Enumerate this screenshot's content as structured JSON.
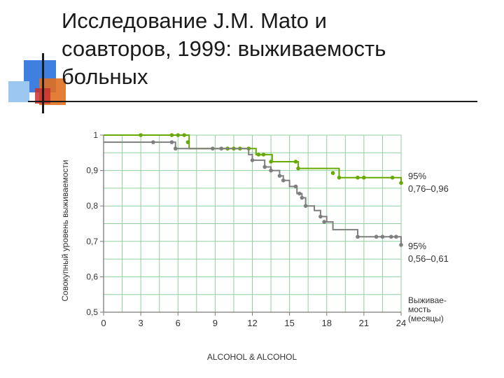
{
  "slide": {
    "title_lines": [
      "Исследование J.M. Mato и",
      "соавторов, 1999: выживаемость",
      "больных"
    ],
    "footer": "ALCOHOL & ALCOHOL"
  },
  "colors": {
    "deco_blue": "#3f7fe0",
    "deco_orange": "#e07020",
    "deco_red": "#c83030",
    "deco_light": "#9cc8f0",
    "grid": "#8fcf9f",
    "axis": "#7a7a7a",
    "series_green": "#66aa00",
    "series_gray": "#7f7f7f",
    "text": "#333333"
  },
  "chart_data": {
    "type": "line",
    "step": true,
    "ylabel": "Совокупный уровень выживаемости",
    "xlabel_lines": [
      "Выживае-",
      "мость",
      "(месяцы)"
    ],
    "xlim": [
      0,
      24
    ],
    "ylim": [
      0.5,
      1.0
    ],
    "xticks": [
      0,
      3,
      6,
      9,
      12,
      15,
      18,
      21,
      24
    ],
    "yticks": [
      0.5,
      0.6,
      0.7,
      0.8,
      0.9,
      1
    ],
    "ytick_labels": [
      "0,5",
      "0,6",
      "0,7",
      "0,8",
      "0,9",
      "1"
    ],
    "grid": true,
    "series": [
      {
        "color": "#66aa00",
        "steps": [
          [
            0,
            1.0
          ],
          [
            6.9,
            0.962
          ],
          [
            12.3,
            0.945
          ],
          [
            13.6,
            0.925
          ],
          [
            15.7,
            0.906
          ],
          [
            19.0,
            0.88
          ],
          [
            24.0,
            0.865
          ]
        ],
        "markers": [
          [
            3.0,
            1.0
          ],
          [
            5.5,
            1.0
          ],
          [
            6.0,
            1.0
          ],
          [
            6.5,
            1.0
          ],
          [
            6.8,
            0.98
          ],
          [
            10.0,
            0.962
          ],
          [
            10.5,
            0.962
          ],
          [
            11.0,
            0.962
          ],
          [
            11.7,
            0.962
          ],
          [
            12.5,
            0.945
          ],
          [
            12.9,
            0.945
          ],
          [
            13.5,
            0.925
          ],
          [
            15.5,
            0.925
          ],
          [
            15.7,
            0.906
          ],
          [
            18.5,
            0.893
          ],
          [
            19.0,
            0.88
          ],
          [
            20.5,
            0.88
          ],
          [
            21.0,
            0.88
          ],
          [
            23.3,
            0.88
          ],
          [
            24.0,
            0.865
          ]
        ],
        "annotation_lines": [
          "95%",
          "0,76–0,96"
        ]
      },
      {
        "color": "#7f7f7f",
        "steps": [
          [
            0,
            0.98
          ],
          [
            5.8,
            0.962
          ],
          [
            11.7,
            0.945
          ],
          [
            12.0,
            0.929
          ],
          [
            13.0,
            0.91
          ],
          [
            13.5,
            0.9
          ],
          [
            14.2,
            0.885
          ],
          [
            14.5,
            0.872
          ],
          [
            15.0,
            0.855
          ],
          [
            15.6,
            0.835
          ],
          [
            16.0,
            0.823
          ],
          [
            16.3,
            0.8
          ],
          [
            17.0,
            0.787
          ],
          [
            17.5,
            0.77
          ],
          [
            18.0,
            0.755
          ],
          [
            18.5,
            0.733
          ],
          [
            20.5,
            0.713
          ],
          [
            24.0,
            0.69
          ]
        ],
        "markers": [
          [
            4.0,
            0.98
          ],
          [
            5.5,
            0.98
          ],
          [
            5.8,
            0.962
          ],
          [
            8.8,
            0.962
          ],
          [
            9.5,
            0.962
          ],
          [
            12.0,
            0.929
          ],
          [
            13.0,
            0.91
          ],
          [
            13.5,
            0.9
          ],
          [
            14.2,
            0.885
          ],
          [
            14.5,
            0.872
          ],
          [
            15.5,
            0.855
          ],
          [
            15.8,
            0.835
          ],
          [
            16.0,
            0.823
          ],
          [
            16.3,
            0.8
          ],
          [
            17.5,
            0.77
          ],
          [
            17.8,
            0.755
          ],
          [
            20.5,
            0.713
          ],
          [
            22.0,
            0.713
          ],
          [
            22.5,
            0.713
          ],
          [
            23.2,
            0.713
          ],
          [
            23.6,
            0.713
          ],
          [
            24.0,
            0.69
          ]
        ],
        "annotation_lines": [
          "95%",
          "0,56–0,61"
        ]
      }
    ]
  }
}
